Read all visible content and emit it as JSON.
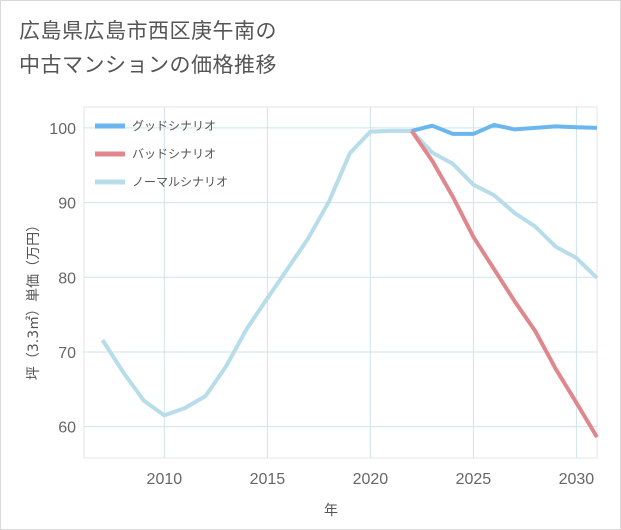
{
  "title": {
    "line1": "広島県広島市西区庚午南の",
    "line2": "中古マンションの価格推移"
  },
  "chart_data": {
    "type": "line",
    "xlabel": "年",
    "ylabel": "坪（3.3㎡）単価（万円）",
    "xlim": [
      2006.1,
      2031
    ],
    "ylim": [
      55.8,
      102.8
    ],
    "xticks": [
      2010,
      2015,
      2020,
      2025,
      2030
    ],
    "yticks": [
      60,
      70,
      80,
      90,
      100
    ],
    "grid": true,
    "legend_position": "top-left",
    "series": [
      {
        "name": "グッドシナリオ",
        "color": "#6ab7f0",
        "x": [
          2022,
          2023,
          2024,
          2025,
          2026,
          2027,
          2028,
          2029,
          2030,
          2031
        ],
        "y": [
          99.6,
          100.3,
          99.2,
          99.2,
          100.4,
          99.8,
          100.0,
          100.2,
          100.1,
          100.0
        ]
      },
      {
        "name": "バッドシナリオ",
        "color": "#e0878e",
        "x": [
          2022,
          2023,
          2024,
          2025,
          2026,
          2027,
          2028,
          2029,
          2030,
          2031
        ],
        "y": [
          99.6,
          95.6,
          90.8,
          85.4,
          81.1,
          76.8,
          72.8,
          67.7,
          63.2,
          58.6
        ]
      },
      {
        "name": "ノーマルシナリオ",
        "color": "#b7dcea",
        "x": [
          2007,
          2008,
          2009,
          2010,
          2011,
          2012,
          2013,
          2014,
          2015,
          2016,
          2017,
          2018,
          2019,
          2020,
          2021,
          2022,
          2023,
          2024,
          2025,
          2026,
          2027,
          2028,
          2029,
          2030,
          2031
        ],
        "y": [
          71.6,
          67.3,
          63.5,
          61.5,
          62.5,
          64.1,
          68.1,
          73.1,
          77.2,
          81.2,
          85.3,
          90.2,
          96.6,
          99.5,
          99.6,
          99.6,
          96.7,
          95.2,
          92.4,
          91.0,
          88.6,
          86.8,
          84.1,
          82.6,
          79.9
        ]
      }
    ]
  }
}
